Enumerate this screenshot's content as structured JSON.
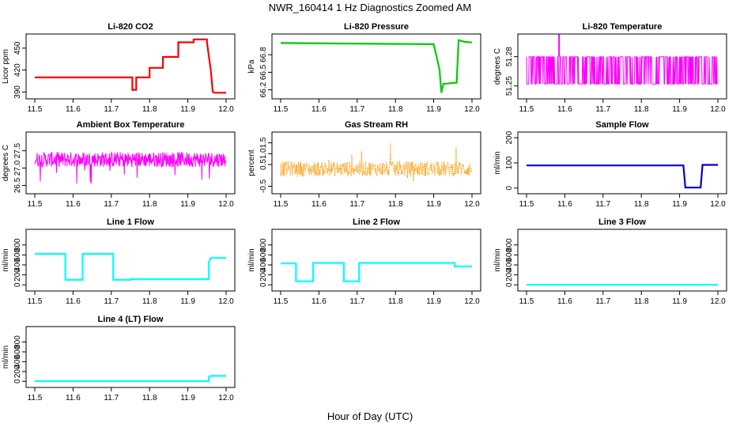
{
  "figure": {
    "title": "NWR_160414  1 Hz Diagnostics Zoomed AM",
    "xlabel": "Hour of Day (UTC)"
  },
  "chart_data": [
    {
      "type": "line",
      "title": "Li-820 CO2",
      "ylabel": "Licor ppm",
      "color": "#ff0000",
      "xlim": [
        11.5,
        12.0
      ],
      "ylim": [
        385,
        465
      ],
      "xticks": [
        "11.5",
        "11.6",
        "11.7",
        "11.8",
        "11.9",
        "12.0"
      ],
      "yticks": [
        "390",
        "420",
        "450"
      ],
      "x": [
        11.5,
        11.755,
        11.755,
        11.765,
        11.765,
        11.8,
        11.8,
        11.835,
        11.835,
        11.875,
        11.875,
        11.915,
        11.915,
        11.95,
        11.95,
        11.96,
        11.965,
        11.97,
        12.0
      ],
      "y": [
        410,
        410,
        393,
        393,
        410,
        410,
        423,
        423,
        438,
        438,
        458,
        458,
        462,
        462,
        458,
        420,
        390,
        389,
        389
      ]
    },
    {
      "type": "line",
      "title": "Li-820 Pressure",
      "ylabel": "kPa",
      "color": "#00cc00",
      "xlim": [
        11.5,
        12.0
      ],
      "ylim": [
        66.1,
        67.1
      ],
      "xticks": [
        "11.5",
        "11.6",
        "11.7",
        "11.8",
        "11.9",
        "12.0"
      ],
      "yticks": [
        "66.2",
        "66.5",
        "66.8"
      ],
      "x": [
        11.5,
        11.9,
        11.915,
        11.92,
        11.925,
        11.955,
        11.96,
        11.965,
        11.98,
        12.0
      ],
      "y": [
        67.0,
        66.98,
        66.55,
        66.15,
        66.3,
        66.32,
        66.32,
        67.05,
        67.02,
        67.01
      ]
    },
    {
      "type": "line",
      "title": "Li-820 Temperature",
      "ylabel": "degrees C",
      "color": "#ff00ff",
      "xlim": [
        11.5,
        12.0
      ],
      "ylim": [
        51.24,
        51.3
      ],
      "xticks": [
        "11.5",
        "11.6",
        "11.7",
        "11.8",
        "11.9",
        "12.0"
      ],
      "yticks": [
        "51.25",
        "51.28"
      ],
      "levels": [
        51.252,
        51.28
      ],
      "spike": {
        "x": 11.585,
        "y": 51.303
      }
    },
    {
      "type": "line",
      "title": "Ambient Box Temperature",
      "ylabel": "degrees C",
      "color": "#ff00ff",
      "xlim": [
        11.5,
        12.0
      ],
      "ylim": [
        26.35,
        27.95
      ],
      "xticks": [
        "11.5",
        "11.6",
        "11.7",
        "11.8",
        "11.9",
        "12.0"
      ],
      "yticks": [
        "26.5",
        "27.0",
        "27.5"
      ],
      "mean": 27.25,
      "spread": 0.22
    },
    {
      "type": "scatter",
      "title": "Gas Stream RH",
      "ylabel": "percent",
      "color": "#ff9900",
      "xlim": [
        11.5,
        12.0
      ],
      "ylim": [
        -0.7,
        1.85
      ],
      "xticks": [
        "11.5",
        "11.6",
        "11.7",
        "11.8",
        "11.9",
        "12.0"
      ],
      "yticks": [
        "-0.5",
        "0.5",
        "1.0",
        "1.5"
      ],
      "mean": 0.3,
      "spread": 0.35
    },
    {
      "type": "line",
      "title": "Sample Flow",
      "ylabel": "ml/min",
      "color": "#0000cc",
      "xlim": [
        11.5,
        12.0
      ],
      "ylim": [
        -10,
        210
      ],
      "xticks": [
        "11.5",
        "11.6",
        "11.7",
        "11.8",
        "11.9",
        "12.0"
      ],
      "yticks": [
        "0",
        "100",
        "200"
      ],
      "x": [
        11.5,
        11.91,
        11.915,
        11.955,
        11.96,
        12.0
      ],
      "y": [
        90,
        90,
        2,
        2,
        92,
        92
      ]
    },
    {
      "type": "line",
      "title": "Line 1 Flow",
      "ylabel": "ml/min",
      "color": "#00ffff",
      "xlim": [
        11.5,
        12.0
      ],
      "ylim": [
        -60,
        1050
      ],
      "xticks": [
        "11.5",
        "11.6",
        "11.7",
        "11.8",
        "11.9",
        "12.0"
      ],
      "yticks": [
        "0",
        "200",
        "400",
        "600",
        "800"
      ],
      "x": [
        11.5,
        11.58,
        11.58,
        11.625,
        11.625,
        11.705,
        11.705,
        11.75,
        11.75,
        11.955,
        11.955,
        11.96,
        12.0
      ],
      "y": [
        620,
        620,
        100,
        100,
        620,
        620,
        100,
        100,
        115,
        115,
        450,
        540,
        540
      ]
    },
    {
      "type": "line",
      "title": "Line 2 Flow",
      "ylabel": "ml/min",
      "color": "#00ffff",
      "xlim": [
        11.5,
        12.0
      ],
      "ylim": [
        -60,
        1050
      ],
      "xticks": [
        "11.5",
        "11.6",
        "11.7",
        "11.8",
        "11.9",
        "12.0"
      ],
      "yticks": [
        "0",
        "200",
        "400",
        "600",
        "800"
      ],
      "x": [
        11.5,
        11.54,
        11.54,
        11.585,
        11.585,
        11.665,
        11.665,
        11.705,
        11.705,
        11.955,
        11.955,
        12.0
      ],
      "y": [
        430,
        430,
        70,
        70,
        440,
        440,
        70,
        70,
        440,
        440,
        370,
        370
      ]
    },
    {
      "type": "line",
      "title": "Line 3 Flow",
      "ylabel": "ml/min",
      "color": "#00ffff",
      "xlim": [
        11.5,
        12.0
      ],
      "ylim": [
        -60,
        1050
      ],
      "xticks": [
        "11.5",
        "11.6",
        "11.7",
        "11.8",
        "11.9",
        "12.0"
      ],
      "yticks": [
        "0",
        "200",
        "400",
        "600",
        "800"
      ],
      "x": [
        11.5,
        12.0
      ],
      "y": [
        0,
        0
      ]
    },
    {
      "type": "line",
      "title": "Line 4 (LT) Flow",
      "ylabel": "ml/min",
      "color": "#00ffff",
      "xlim": [
        11.5,
        12.0
      ],
      "ylim": [
        -60,
        1050
      ],
      "xticks": [
        "11.5",
        "11.6",
        "11.7",
        "11.8",
        "11.9",
        "12.0"
      ],
      "yticks": [
        "0",
        "200",
        "400",
        "600",
        "800"
      ],
      "x": [
        11.5,
        11.955,
        11.955,
        11.96,
        12.0
      ],
      "y": [
        5,
        5,
        90,
        110,
        110
      ]
    }
  ]
}
